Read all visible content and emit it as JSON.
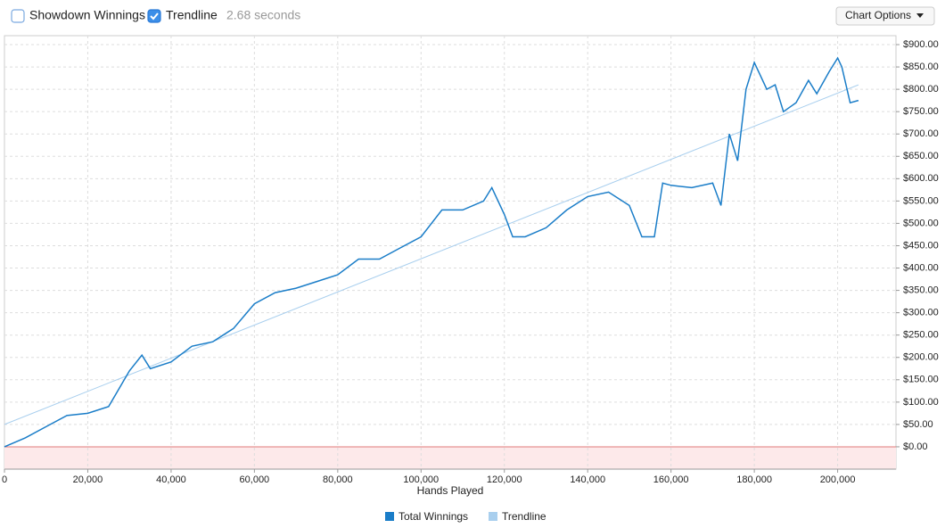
{
  "toolbar": {
    "checkboxes": [
      {
        "label": "Showdown Winnings",
        "checked": false
      },
      {
        "label": "Trendline",
        "checked": true
      }
    ],
    "timing": "2.68 seconds",
    "button": "Chart Options"
  },
  "chart_data": {
    "type": "line",
    "x_label": "Hands Played",
    "x": [
      0,
      5000,
      10000,
      15000,
      20000,
      25000,
      30000,
      33000,
      35000,
      40000,
      45000,
      50000,
      55000,
      60000,
      65000,
      70000,
      75000,
      80000,
      85000,
      90000,
      95000,
      100000,
      105000,
      110000,
      115000,
      117000,
      120000,
      122000,
      125000,
      130000,
      135000,
      140000,
      145000,
      150000,
      153000,
      156000,
      158000,
      160000,
      165000,
      170000,
      172000,
      174000,
      176000,
      178000,
      180000,
      183000,
      185000,
      187000,
      190000,
      193000,
      195000,
      198000,
      200000,
      201000,
      203000,
      205000
    ],
    "series": [
      {
        "name": "Total Winnings",
        "color": "#1a7dc8",
        "values": [
          0,
          20,
          45,
          70,
          75,
          90,
          170,
          205,
          175,
          190,
          225,
          235,
          265,
          320,
          345,
          355,
          370,
          385,
          420,
          420,
          445,
          470,
          530,
          530,
          550,
          580,
          520,
          470,
          470,
          490,
          530,
          560,
          570,
          540,
          470,
          470,
          590,
          585,
          580,
          590,
          540,
          700,
          640,
          800,
          860,
          800,
          810,
          750,
          770,
          820,
          790,
          840,
          870,
          850,
          770,
          775
        ]
      },
      {
        "name": "Trendline",
        "color": "#a9cfee",
        "x": [
          0,
          205000
        ],
        "values": [
          50,
          810
        ]
      }
    ],
    "xlim": [
      0,
      214000
    ],
    "ylim": [
      -50,
      920
    ],
    "xticks": [
      0,
      {
        "value": 20000,
        "label": "20,000"
      },
      {
        "value": 40000,
        "label": "40,000"
      },
      {
        "value": 60000,
        "label": "60,000"
      },
      {
        "value": 80000,
        "label": "80,000"
      },
      {
        "value": 100000,
        "label": "100,000"
      },
      {
        "value": 120000,
        "label": "120,000"
      },
      {
        "value": 140000,
        "label": "140,000"
      },
      {
        "value": 160000,
        "label": "160,000"
      },
      {
        "value": 180000,
        "label": "180,000"
      },
      {
        "value": 200000,
        "label": "200,000"
      }
    ],
    "yticks": [
      {
        "value": 0,
        "label": "$0.00"
      },
      {
        "value": 50,
        "label": "$50.00"
      },
      {
        "value": 100,
        "label": "$100.00"
      },
      {
        "value": 150,
        "label": "$150.00"
      },
      {
        "value": 200,
        "label": "$200.00"
      },
      {
        "value": 250,
        "label": "$250.00"
      },
      {
        "value": 300,
        "label": "$300.00"
      },
      {
        "value": 350,
        "label": "$350.00"
      },
      {
        "value": 400,
        "label": "$400.00"
      },
      {
        "value": 450,
        "label": "$450.00"
      },
      {
        "value": 500,
        "label": "$500.00"
      },
      {
        "value": 550,
        "label": "$550.00"
      },
      {
        "value": 600,
        "label": "$600.00"
      },
      {
        "value": 650,
        "label": "$650.00"
      },
      {
        "value": 700,
        "label": "$700.00"
      },
      {
        "value": 750,
        "label": "$750.00"
      },
      {
        "value": 800,
        "label": "$800.00"
      },
      {
        "value": 850,
        "label": "$850.00"
      },
      {
        "value": 900,
        "label": "$900.00"
      }
    ],
    "grid": true,
    "legend": "bottom"
  }
}
